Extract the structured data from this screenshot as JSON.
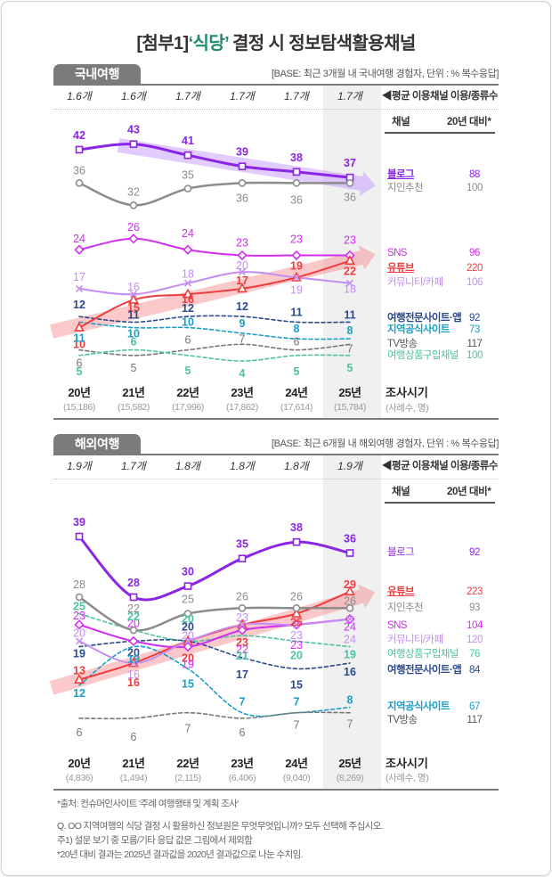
{
  "title": {
    "prefix": "[첨부1]",
    "highlight": "‘식당’",
    "suffix": " 결정 시 정보탐색활용채널"
  },
  "footer": {
    "source": "*출처: 컨슈머인사이트 '주례 여행행태 및 계획 조사'",
    "question": "Q. OO 지역여행의 식당 결정 시 활용하신 정보원은 무엇무엇입니까? 모두 선택해 주십시오.",
    "note1": "주1) 설문 보기 중 모름/기타 응답 값은 그림에서 제외함",
    "note2": "*20년 대비 결과는 2025년 결과값을 2020년 결과값으로 나눈 수치임."
  },
  "chart_data": [
    {
      "type": "line",
      "title": "국내여행",
      "base_note": "[BASE: 최근 3개월 내 국내여행 경험자, 단위 : % 복수응답]",
      "categories": [
        "20년",
        "21년",
        "22년",
        "23년",
        "24년",
        "25년"
      ],
      "sample_sizes": [
        "(15,186)",
        "(15,582)",
        "(17,996)",
        "(17,862)",
        "(17,614)",
        "(15,784)"
      ],
      "xlabel": "조사시기",
      "sample_label": "(사례수, 명)",
      "avg_channels": [
        "1.6개",
        "1.6개",
        "1.7개",
        "1.7개",
        "1.7개",
        "1.7개"
      ],
      "avg_label": "◀평균 이용채널 이용/종류수",
      "highlighted_category": "25년",
      "legend_headers": {
        "channel": "채널",
        "ratio": "20년 대비*"
      },
      "highlighted_trends": [
        "블로그",
        "유튜브"
      ],
      "series": [
        {
          "name": "블로그",
          "values": [
            42,
            43,
            41,
            39,
            38,
            37
          ],
          "vs2020": "88",
          "color": "#8a24e6",
          "style": "solid",
          "marker": "square"
        },
        {
          "name": "지인추천",
          "values": [
            36,
            32,
            35,
            36,
            36,
            36
          ],
          "vs2020": "100",
          "color": "#8c8c8c",
          "style": "solid",
          "marker": "circle"
        },
        {
          "name": "SNS",
          "values": [
            24,
            26,
            24,
            23,
            23,
            23
          ],
          "vs2020": "96",
          "color": "#d12ef0",
          "style": "solid",
          "marker": "diamond"
        },
        {
          "name": "유튜브",
          "values": [
            10,
            15,
            16,
            17,
            19,
            22
          ],
          "vs2020": "220",
          "color": "#f03c3c",
          "style": "solid",
          "marker": "triangle"
        },
        {
          "name": "커뮤니티/카페",
          "values": [
            17,
            16,
            18,
            20,
            19,
            18
          ],
          "vs2020": "106",
          "color": "#c38ef2",
          "style": "solid",
          "marker": "x"
        },
        {
          "name": "여행전문사이트·앱",
          "values": [
            12,
            11,
            12,
            12,
            11,
            11
          ],
          "vs2020": "92",
          "color": "#2b4a8b",
          "style": "dashed",
          "marker": "none"
        },
        {
          "name": "지역공식사이트",
          "values": [
            11,
            10,
            10,
            9,
            8,
            8
          ],
          "vs2020": "73",
          "color": "#1a9ec6",
          "style": "dashed",
          "marker": "none"
        },
        {
          "name": "TV방송",
          "values": [
            6,
            5,
            6,
            7,
            6,
            7
          ],
          "vs2020": "117",
          "color": "#777777",
          "style": "dashed",
          "marker": "none"
        },
        {
          "name": "여행상품구입채널",
          "values": [
            5,
            6,
            5,
            4,
            5,
            5
          ],
          "vs2020": "100",
          "color": "#4cc2a2",
          "style": "dashed",
          "marker": "none"
        }
      ]
    },
    {
      "type": "line",
      "title": "해외여행",
      "base_note": "[BASE: 최근 6개월 내 해외여행 경험자, 단위 : % 복수응답]",
      "categories": [
        "20년",
        "21년",
        "22년",
        "23년",
        "24년",
        "25년"
      ],
      "sample_sizes": [
        "(4,836)",
        "(1,494)",
        "(2,115)",
        "(6,406)",
        "(9,040)",
        "(8,269)"
      ],
      "xlabel": "조사시기",
      "sample_label": "(사례수, 명)",
      "avg_channels": [
        "1.9개",
        "1.7개",
        "1.8개",
        "1.8개",
        "1.8개",
        "1.9개"
      ],
      "avg_label": "◀평균 이용채널 이용/종류수",
      "highlighted_category": "25년",
      "legend_headers": {
        "channel": "채널",
        "ratio": "20년 대비*"
      },
      "highlighted_trends": [
        "유튜브"
      ],
      "series": [
        {
          "name": "블로그",
          "values": [
            39,
            28,
            30,
            35,
            38,
            36
          ],
          "vs2020": "92",
          "color": "#8a24e6",
          "style": "solid",
          "marker": "square"
        },
        {
          "name": "유튜브",
          "values": [
            13,
            16,
            20,
            23,
            25,
            29
          ],
          "vs2020": "223",
          "color": "#f03c3c",
          "style": "solid",
          "marker": "triangle"
        },
        {
          "name": "지인추천",
          "values": [
            28,
            22,
            25,
            26,
            26,
            26
          ],
          "vs2020": "93",
          "color": "#8c8c8c",
          "style": "solid",
          "marker": "circle"
        },
        {
          "name": "SNS",
          "values": [
            23,
            20,
            19,
            22,
            23,
            24
          ],
          "vs2020": "104",
          "color": "#d12ef0",
          "style": "solid",
          "marker": "diamond"
        },
        {
          "name": "커뮤니티/카페",
          "values": [
            20,
            16,
            20,
            23,
            23,
            24
          ],
          "vs2020": "120",
          "color": "#c38ef2",
          "style": "solid",
          "marker": "x"
        },
        {
          "name": "여행상품구입채널",
          "values": [
            25,
            22,
            20,
            21,
            20,
            19
          ],
          "vs2020": "76",
          "color": "#4cc2a2",
          "style": "dashed",
          "marker": "none"
        },
        {
          "name": "여행전문사이트·앱",
          "values": [
            19,
            20,
            20,
            17,
            15,
            16
          ],
          "vs2020": "84",
          "color": "#2b4a8b",
          "style": "dashed",
          "marker": "none"
        },
        {
          "name": "지역공식사이트",
          "values": [
            12,
            19,
            15,
            7,
            7,
            8
          ],
          "vs2020": "67",
          "color": "#1a9ec6",
          "style": "dashed",
          "marker": "none"
        },
        {
          "name": "TV방송",
          "values": [
            6,
            6,
            7,
            6,
            7,
            7
          ],
          "vs2020": "117",
          "color": "#777777",
          "style": "dashed",
          "marker": "none"
        }
      ]
    }
  ]
}
